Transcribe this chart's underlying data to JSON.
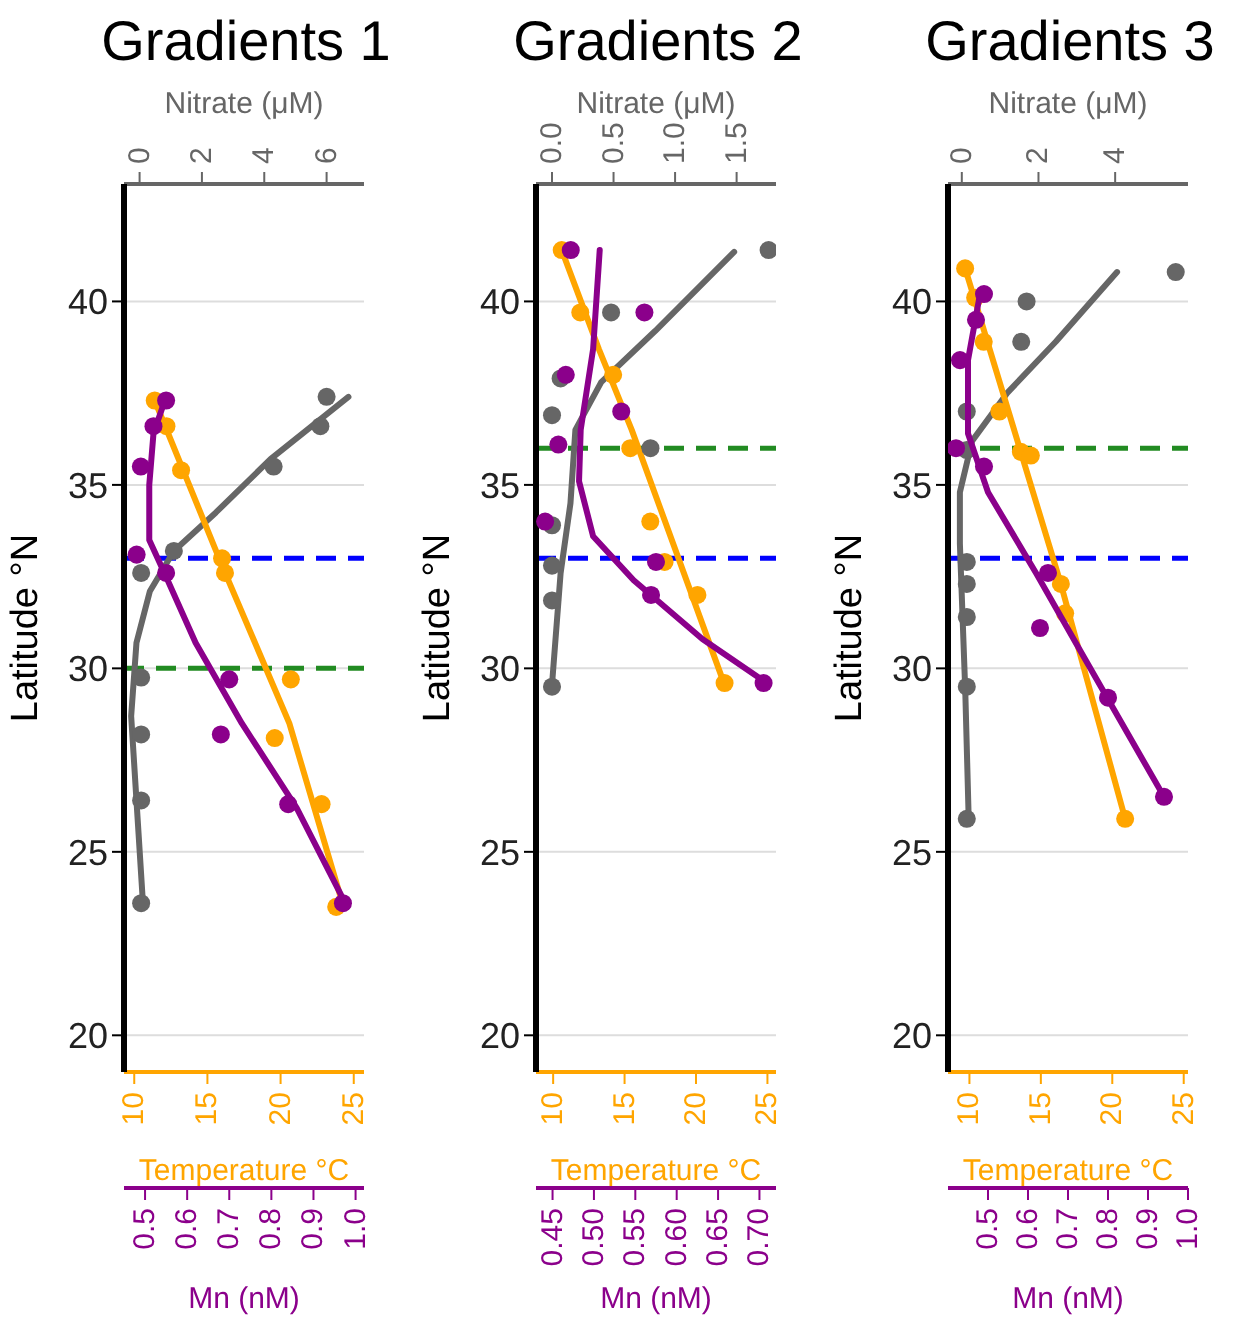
{
  "chart_data": [
    {
      "type": "scatter",
      "title": "Gradients 1",
      "xlabel": "Temperature °C",
      "x2label": "Nitrate (μM)",
      "ylabel": "Latitude °N",
      "xlim": [
        9.3,
        25.7
      ],
      "xticks": [
        10,
        15,
        20,
        25
      ],
      "x2lim": [
        -0.5,
        7.2
      ],
      "x2ticks": [
        0,
        2,
        4,
        6
      ],
      "ylim": [
        19,
        43.2
      ],
      "yticks": [
        20,
        25,
        30,
        35,
        40
      ],
      "grid": "y",
      "ref_lines": [
        {
          "axis": "y",
          "value": 33,
          "color": "#0000ff",
          "line_style": "dashed"
        },
        {
          "axis": "y",
          "value": 30,
          "color": "#228b22",
          "line_style": "dashed"
        }
      ],
      "series": [
        {
          "type": "scatter",
          "axis": "x2",
          "color": "#666666",
          "x": [
            6.0,
            5.8,
            4.3,
            1.1,
            0.05,
            0.05,
            0.05,
            0.05,
            0.05
          ],
          "values": [
            37.4,
            36.6,
            35.5,
            33.2,
            32.6,
            29.75,
            28.2,
            26.4,
            23.6
          ]
        },
        {
          "type": "scatter",
          "color": "#ffa500",
          "x": [
            11.4,
            12.2,
            13.2,
            16.0,
            16.2,
            20.7,
            19.6,
            22.8,
            23.8
          ],
          "values": [
            37.3,
            36.6,
            35.4,
            33.0,
            32.6,
            29.7,
            28.1,
            26.3,
            23.5
          ]
        },
        {
          "type": "line",
          "axis": "x2",
          "color": "#666666",
          "x": [
            0.1,
            -0.1,
            -0.27,
            -0.1,
            0.33,
            1.1,
            2.45,
            4.2,
            6.7
          ],
          "values": [
            23.7,
            26.4,
            28.7,
            30.7,
            32.1,
            33.2,
            34.25,
            35.7,
            37.4
          ]
        },
        {
          "type": "line",
          "color": "#ffa500",
          "x": [
            11.4,
            16.0,
            20.6,
            24.3
          ],
          "values": [
            37.3,
            32.8,
            28.5,
            23.5
          ]
        }
      ]
    },
    {
      "type": "scatter",
      "xlabel": "Mn (nM)",
      "xlim": [
        0.45,
        1.02
      ],
      "xticks": [
        0.5,
        0.6,
        0.7,
        0.8,
        0.9,
        {
          "value": 1,
          "label": "1.0"
        }
      ],
      "ylim": [
        19,
        43.2
      ],
      "tick_labels": "x",
      "series": [
        {
          "type": "scatter",
          "color": "#8b008b",
          "x": [
            0.55,
            0.52,
            0.49,
            0.48,
            0.55,
            0.7,
            0.68,
            0.84,
            0.97
          ],
          "values": [
            37.3,
            36.6,
            35.5,
            33.1,
            32.6,
            29.7,
            28.2,
            26.3,
            23.6
          ]
        },
        {
          "type": "line",
          "color": "#8b008b",
          "x": [
            0.55,
            0.52,
            0.51,
            0.51,
            0.55,
            0.62,
            0.73,
            0.86,
            0.98
          ],
          "values": [
            37.4,
            36.4,
            35.0,
            33.5,
            32.5,
            30.7,
            28.5,
            26.2,
            23.5
          ]
        }
      ]
    },
    {
      "type": "scatter",
      "title": "Gradients 2",
      "xlabel": "Temperature °C",
      "x2label": "Nitrate (μM)",
      "ylabel": "Latitude °N",
      "xlim": [
        8.8,
        25.6
      ],
      "xticks": [
        10,
        15,
        20,
        25
      ],
      "x2lim": [
        -0.13,
        1.82
      ],
      "x2ticks": [
        {
          "value": 0,
          "label": "0.0"
        },
        0.5,
        {
          "value": 1,
          "label": "1.0"
        },
        1.5
      ],
      "ylim": [
        19,
        43.2
      ],
      "yticks": [
        20,
        25,
        30,
        35,
        40
      ],
      "grid": "y",
      "ref_lines": [
        {
          "axis": "y",
          "value": 36,
          "color": "#228b22",
          "line_style": "dashed"
        },
        {
          "axis": "y",
          "value": 33,
          "color": "#0000ff",
          "line_style": "dashed"
        }
      ],
      "series": [
        {
          "type": "scatter",
          "axis": "x2",
          "color": "#666666",
          "x": [
            1.76,
            0.48,
            0.07,
            0.0,
            0.8,
            0.0,
            0.0,
            0.0,
            0.0
          ],
          "values": [
            41.4,
            39.7,
            37.9,
            36.9,
            36.0,
            33.9,
            32.8,
            31.85,
            29.5
          ]
        },
        {
          "type": "scatter",
          "color": "#ffa500",
          "x": [
            10.6,
            11.9,
            14.2,
            15.4,
            16.8,
            17.8,
            20.1,
            22.0
          ],
          "values": [
            41.4,
            39.7,
            38.0,
            36.0,
            34.0,
            32.9,
            32.0,
            29.6
          ]
        },
        {
          "type": "line",
          "axis": "x2",
          "color": "#666666",
          "x": [
            0,
            0.07,
            0.15,
            0.19,
            0.4,
            0.84,
            1.48
          ],
          "values": [
            29.55,
            32.6,
            34.5,
            36.5,
            37.8,
            39.2,
            41.35
          ]
        },
        {
          "type": "line",
          "color": "#ffa500",
          "x": [
            10.6,
            13.2,
            15.5,
            22.0
          ],
          "values": [
            41.4,
            38.7,
            36.5,
            29.55
          ]
        }
      ]
    },
    {
      "type": "scatter",
      "xlabel": "Mn (nM)",
      "xlim": [
        0.43,
        0.72
      ],
      "xticks": [
        0.45,
        {
          "value": 0.5,
          "label": "0.50"
        },
        0.55,
        {
          "value": 0.6,
          "label": "0.60"
        },
        0.65,
        {
          "value": 0.7,
          "label": "0.70"
        }
      ],
      "ylim": [
        19,
        43.2
      ],
      "tick_labels": "x",
      "series": [
        {
          "type": "scatter",
          "color": "#8b008b",
          "x": [
            0.472,
            0.561,
            0.466,
            0.533,
            0.457,
            0.441,
            0.575,
            0.569,
            0.705
          ],
          "values": [
            41.4,
            39.7,
            38.0,
            37.0,
            36.1,
            34.0,
            32.9,
            32.0,
            29.6
          ]
        },
        {
          "type": "line",
          "color": "#8b008b",
          "x": [
            0.507,
            0.499,
            0.484,
            0.482,
            0.499,
            0.548,
            0.631,
            0.709
          ],
          "values": [
            41.4,
            38.7,
            36.5,
            35.1,
            33.6,
            32.4,
            30.8,
            29.6
          ]
        }
      ]
    },
    {
      "type": "scatter",
      "title": "Gradients 3",
      "xlabel": "Temperature °C",
      "x2label": "Nitrate (μM)",
      "ylabel": "Latitude °N",
      "xlim": [
        8.5,
        25.3
      ],
      "xticks": [
        10,
        15,
        20,
        25
      ],
      "x2lim": [
        -0.36,
        5.9
      ],
      "x2ticks": [
        0,
        2,
        4
      ],
      "ylim": [
        19,
        43.2
      ],
      "yticks": [
        20,
        25,
        30,
        35,
        40
      ],
      "grid": "y",
      "ref_lines": [
        {
          "axis": "y",
          "value": 36,
          "color": "#228b22",
          "line_style": "dashed"
        },
        {
          "axis": "y",
          "value": 33,
          "color": "#0000ff",
          "line_style": "dashed"
        }
      ],
      "series": [
        {
          "type": "scatter",
          "axis": "x2",
          "color": "#666666",
          "x": [
            5.58,
            1.69,
            1.55,
            0.13,
            0.13,
            0.13,
            0.13,
            0.13,
            0.13,
            0.13
          ],
          "values": [
            40.8,
            40.0,
            38.9,
            37.0,
            35.95,
            32.9,
            32.3,
            31.4,
            29.5,
            25.9
          ]
        },
        {
          "type": "scatter",
          "color": "#ffa500",
          "x": [
            9.7,
            10.4,
            11.0,
            12.1,
            13.6,
            14.3,
            16.4,
            16.7,
            20.9
          ],
          "values": [
            40.9,
            40.1,
            38.9,
            37.0,
            35.9,
            35.8,
            32.3,
            31.5,
            25.9
          ]
        },
        {
          "type": "line",
          "axis": "x2",
          "color": "#666666",
          "x": [
            0.18,
            0.09,
            -0.05,
            -0.05,
            0.27,
            1.18,
            2.45,
            4.05
          ],
          "values": [
            25.9,
            29.4,
            33.4,
            34.8,
            36.2,
            37.5,
            38.9,
            40.8
          ]
        },
        {
          "type": "line",
          "color": "#ffa500",
          "x": [
            9.7,
            16.4,
            20.9
          ],
          "values": [
            40.9,
            32.3,
            25.9
          ]
        }
      ]
    },
    {
      "type": "scatter",
      "xlabel": "Mn (nM)",
      "xlim": [
        0.4,
        1.0
      ],
      "xticks": [
        0.5,
        0.6,
        0.7,
        0.8,
        0.9,
        {
          "value": 1,
          "label": "1.0"
        }
      ],
      "ylim": [
        19,
        43.2
      ],
      "tick_labels": "x",
      "series": [
        {
          "type": "scatter",
          "color": "#8b008b",
          "x": [
            0.49,
            0.47,
            0.43,
            0.42,
            0.49,
            0.65,
            0.63,
            0.8,
            0.94
          ],
          "values": [
            40.2,
            39.5,
            38.4,
            36.0,
            35.5,
            32.6,
            31.1,
            29.2,
            26.5
          ]
        },
        {
          "type": "line",
          "color": "#8b008b",
          "x": [
            0.48,
            0.45,
            0.45,
            0.5,
            0.62,
            0.74,
            0.94
          ],
          "values": [
            40.2,
            38.4,
            36.4,
            34.8,
            32.6,
            30.3,
            26.5
          ]
        }
      ]
    }
  ]
}
